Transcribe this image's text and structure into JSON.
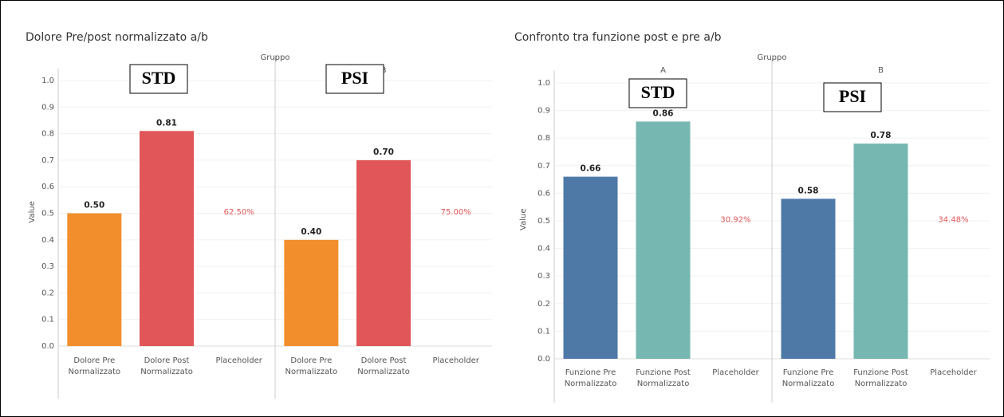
{
  "chart_data": [
    {
      "type": "bar",
      "title": "Dolore Pre/post normalizzato a/b",
      "facet_title": "Gruppo",
      "y_label": "Value",
      "categories": [
        "Dolore Pre Normalizzato",
        "Dolore Post Normalizzato",
        "Placeholder"
      ],
      "colors": [
        "#f28e2b",
        "#e15759",
        null
      ],
      "facets": [
        {
          "name": "A",
          "overlay": "STD",
          "values": [
            0.5,
            0.81,
            null
          ],
          "value_labels": [
            "0.50",
            "0.81",
            null
          ],
          "placeholder": "62.50%"
        },
        {
          "name": "B",
          "overlay": "PSI",
          "values": [
            0.4,
            0.7,
            null
          ],
          "value_labels": [
            "0.40",
            "0.70",
            null
          ],
          "placeholder": "75.00%"
        }
      ],
      "ylim": [
        -0.02,
        1.03
      ],
      "yticks": [
        {
          "value": 0,
          "label": "0.0"
        },
        0.1,
        0.2,
        0.3,
        0.4,
        0.5,
        0.6,
        0.7,
        0.8,
        0.9,
        {
          "value": 1,
          "label": "1.0"
        }
      ],
      "grid": true
    },
    {
      "type": "bar",
      "title": "Confronto tra funzione post e pre a/b",
      "facet_title": "Gruppo",
      "y_label": "Value",
      "categories": [
        "Funzione Pre Normalizzato",
        "Funzione Post Normalizzato",
        "Placeholder"
      ],
      "colors": [
        "#4e79a7",
        "#76b7b2",
        null
      ],
      "facets": [
        {
          "name": "A",
          "overlay": "STD",
          "values": [
            0.66,
            0.86,
            null
          ],
          "value_labels": [
            "0.66",
            "0.86",
            null
          ],
          "placeholder": "30.92%"
        },
        {
          "name": "B",
          "overlay": "PSI",
          "values": [
            0.58,
            0.78,
            null
          ],
          "value_labels": [
            "0.58",
            "0.78",
            null
          ],
          "placeholder": "34.48%"
        }
      ],
      "ylim": [
        -0.02,
        1.03
      ],
      "yticks": [
        {
          "value": 0,
          "label": "0.0"
        },
        0.1,
        0.2,
        0.3,
        0.4,
        0.5,
        0.6,
        0.7,
        0.8,
        0.9,
        {
          "value": 1,
          "label": "1.0"
        }
      ],
      "grid": true
    }
  ]
}
